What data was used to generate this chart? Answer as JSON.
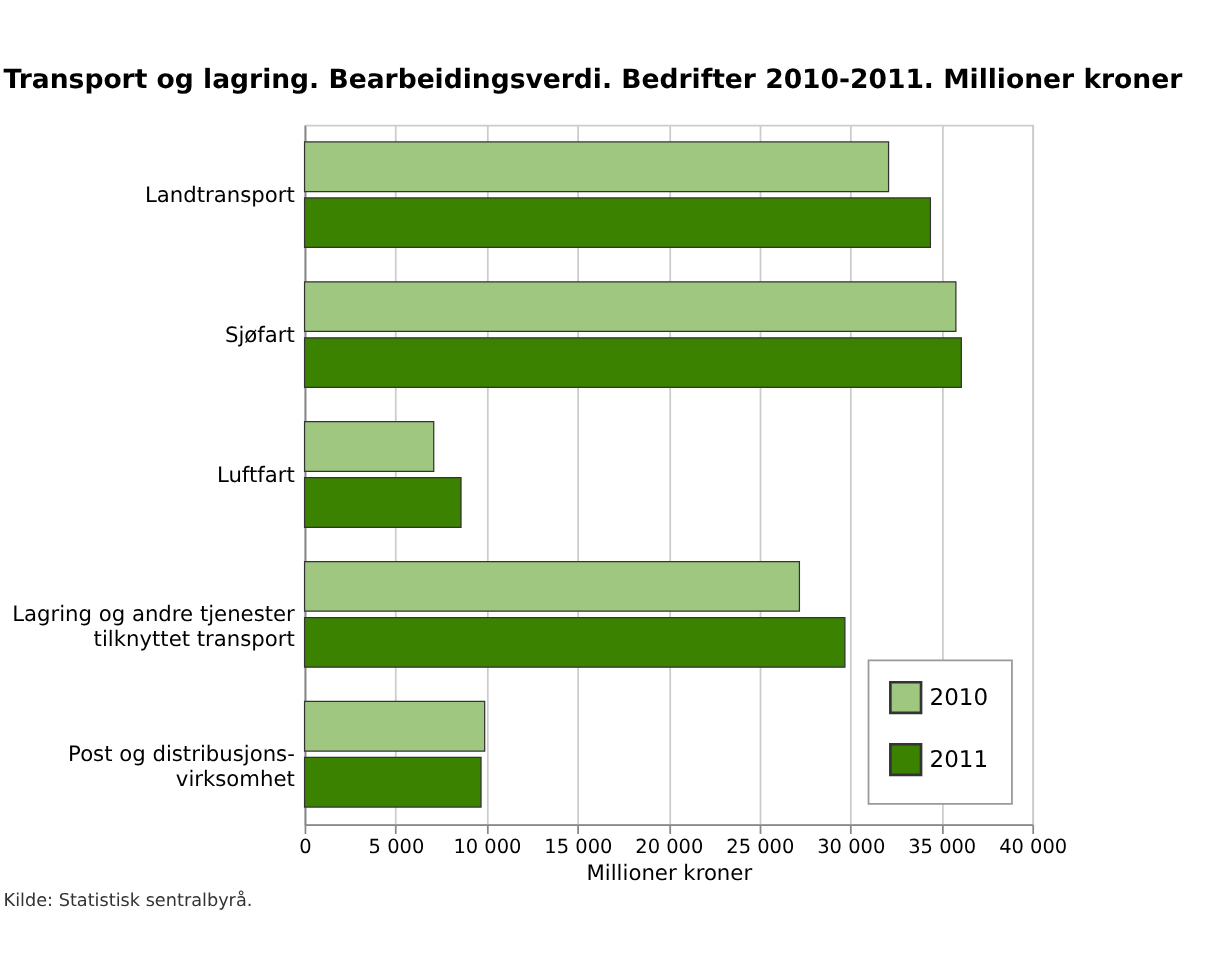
{
  "chart_data": {
    "type": "bar",
    "orientation": "horizontal",
    "title": "Transport og lagring. Bearbeidingsverdi. Bedrifter 2010-2011. Millioner kroner",
    "categories": [
      "Landtransport",
      "Sjøfart",
      "Luftfart",
      "Lagring og andre tjenester\ntilknyttet transport",
      "Post og distribusjons-\nvirksomhet"
    ],
    "series": [
      {
        "name": "2010",
        "color": "#9fc77f",
        "values": [
          32100,
          35800,
          7100,
          27200,
          9900
        ]
      },
      {
        "name": "2011",
        "color": "#3a8200",
        "values": [
          34400,
          36100,
          8600,
          29700,
          9700
        ]
      }
    ],
    "xlim": [
      0,
      40000
    ],
    "xticks": [
      0,
      {
        "value": 5000,
        "label": "5 000"
      },
      {
        "value": 10000,
        "label": "10 000"
      },
      {
        "value": 15000,
        "label": "15 000"
      },
      {
        "value": 20000,
        "label": "20 000"
      },
      {
        "value": 25000,
        "label": "25 000"
      },
      {
        "value": 30000,
        "label": "30 000"
      },
      {
        "value": 35000,
        "label": "35 000"
      },
      {
        "value": 40000,
        "label": "40 000"
      }
    ],
    "xlabel": "Millioner kroner",
    "grid": "x",
    "legend": "bottom right",
    "annotations": [
      "Kilde: Statistisk sentralbyrå."
    ]
  }
}
